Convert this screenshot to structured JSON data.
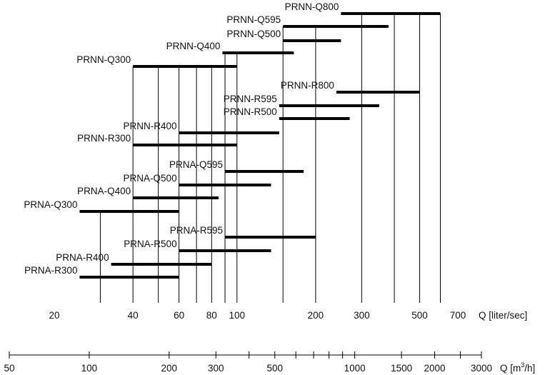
{
  "chart_data": {
    "type": "range-bar",
    "x_axis_primary": {
      "label": "Q [liter/sec]",
      "scale": "log",
      "range": [
        20,
        700
      ],
      "tick_labels": [
        20,
        40,
        60,
        80,
        100,
        200,
        300,
        500,
        700
      ]
    },
    "x_axis_secondary": {
      "label_prefix": "Q [m",
      "label_sup": "3",
      "label_suffix": "/h]",
      "scale": "log",
      "range": [
        50,
        3000
      ],
      "tick_labels": [
        50,
        100,
        200,
        300,
        500,
        1000,
        1500,
        2000,
        3000
      ],
      "minor_ticks": [
        400,
        600,
        700,
        800,
        900,
        2500
      ]
    },
    "grid_lines": [
      30,
      40,
      50,
      60,
      70,
      80,
      90,
      100,
      150,
      200,
      300,
      400,
      500,
      600,
      700
    ],
    "series": [
      {
        "name": "PRNN-Q800",
        "min": 250,
        "max": 600
      },
      {
        "name": "PRNN-Q595",
        "min": 150,
        "max": 380
      },
      {
        "name": "PRNN-Q500",
        "min": 150,
        "max": 250
      },
      {
        "name": "PRNN-Q400",
        "min": 88,
        "max": 165
      },
      {
        "name": "PRNN-Q300",
        "min": 40,
        "max": 100
      },
      {
        "name": "PRNN-R800",
        "min": 240,
        "max": 500
      },
      {
        "name": "PRNN-R595",
        "min": 145,
        "max": 350
      },
      {
        "name": "PRNN-R500",
        "min": 145,
        "max": 270
      },
      {
        "name": "PRNN-R400",
        "min": 60,
        "max": 145
      },
      {
        "name": "PRNN-R300",
        "min": 40,
        "max": 100
      },
      {
        "name": "PRNA-Q595",
        "min": 90,
        "max": 180
      },
      {
        "name": "PRNA-Q500",
        "min": 60,
        "max": 135
      },
      {
        "name": "PRNA-Q400",
        "min": 40,
        "max": 85
      },
      {
        "name": "PRNA-Q300",
        "min": 25,
        "max": 60
      },
      {
        "name": "PRNA-R595",
        "min": 90,
        "max": 200
      },
      {
        "name": "PRNA-R500",
        "min": 60,
        "max": 135
      },
      {
        "name": "PRNA-R400",
        "min": 33,
        "max": 80
      },
      {
        "name": "PRNA-R300",
        "min": 25,
        "max": 60
      }
    ]
  }
}
